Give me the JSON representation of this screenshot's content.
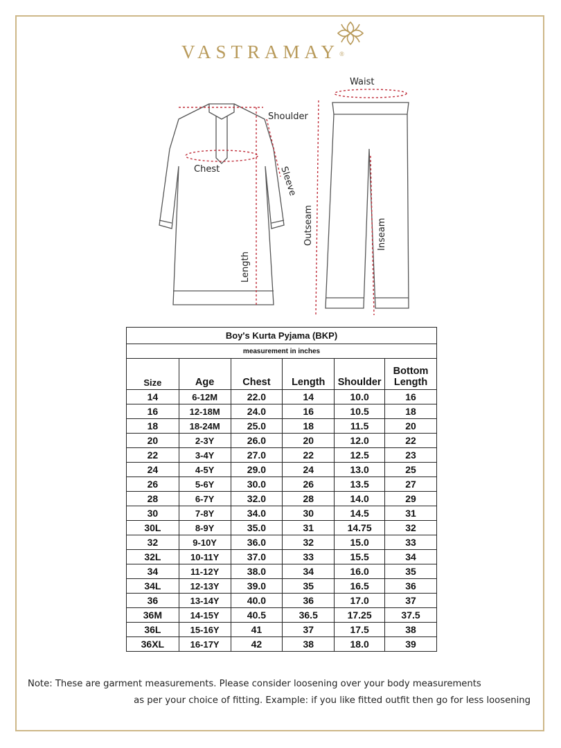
{
  "brand": {
    "name": "VASTRAMAY",
    "registered": "®",
    "accent": "#b89a5a"
  },
  "diagram": {
    "labels": {
      "shoulder": "Shoulder",
      "chest": "Chest",
      "sleeve": "Sleeve",
      "length": "Length",
      "waist": "Waist",
      "outseam": "Outseam",
      "inseam": "Inseam"
    },
    "measure_color": "#c0303c"
  },
  "table": {
    "title": "Boy's Kurta Pyjama (BKP)",
    "subtitle": "measurement in inches",
    "headers": [
      "Size",
      "Age",
      "Chest",
      "Length",
      "Shoulder",
      "Bottom Length"
    ],
    "rows": [
      [
        "14",
        "6-12M",
        "22.0",
        "14",
        "10.0",
        "16"
      ],
      [
        "16",
        "12-18M",
        "24.0",
        "16",
        "10.5",
        "18"
      ],
      [
        "18",
        "18-24M",
        "25.0",
        "18",
        "11.5",
        "20"
      ],
      [
        "20",
        "2-3Y",
        "26.0",
        "20",
        "12.0",
        "22"
      ],
      [
        "22",
        "3-4Y",
        "27.0",
        "22",
        "12.5",
        "23"
      ],
      [
        "24",
        "4-5Y",
        "29.0",
        "24",
        "13.0",
        "25"
      ],
      [
        "26",
        "5-6Y",
        "30.0",
        "26",
        "13.5",
        "27"
      ],
      [
        "28",
        "6-7Y",
        "32.0",
        "28",
        "14.0",
        "29"
      ],
      [
        "30",
        "7-8Y",
        "34.0",
        "30",
        "14.5",
        "31"
      ],
      [
        "30L",
        "8-9Y",
        "35.0",
        "31",
        "14.75",
        "32"
      ],
      [
        "32",
        "9-10Y",
        "36.0",
        "32",
        "15.0",
        "33"
      ],
      [
        "32L",
        "10-11Y",
        "37.0",
        "33",
        "15.5",
        "34"
      ],
      [
        "34",
        "11-12Y",
        "38.0",
        "34",
        "16.0",
        "35"
      ],
      [
        "34L",
        "12-13Y",
        "39.0",
        "35",
        "16.5",
        "36"
      ],
      [
        "36",
        "13-14Y",
        "40.0",
        "36",
        "17.0",
        "37"
      ],
      [
        "36M",
        "14-15Y",
        "40.5",
        "36.5",
        "17.25",
        "37.5"
      ],
      [
        "36L",
        "15-16Y",
        "41",
        "37",
        "17.5",
        "38"
      ],
      [
        "36XL",
        "16-17Y",
        "42",
        "38",
        "18.0",
        "39"
      ]
    ]
  },
  "note": {
    "line1": "Note: These are garment measurements. Please consider loosening over your body measurements",
    "line2": "as per your choice of fitting. Example: if you like fitted outfit then go for less loosening"
  }
}
